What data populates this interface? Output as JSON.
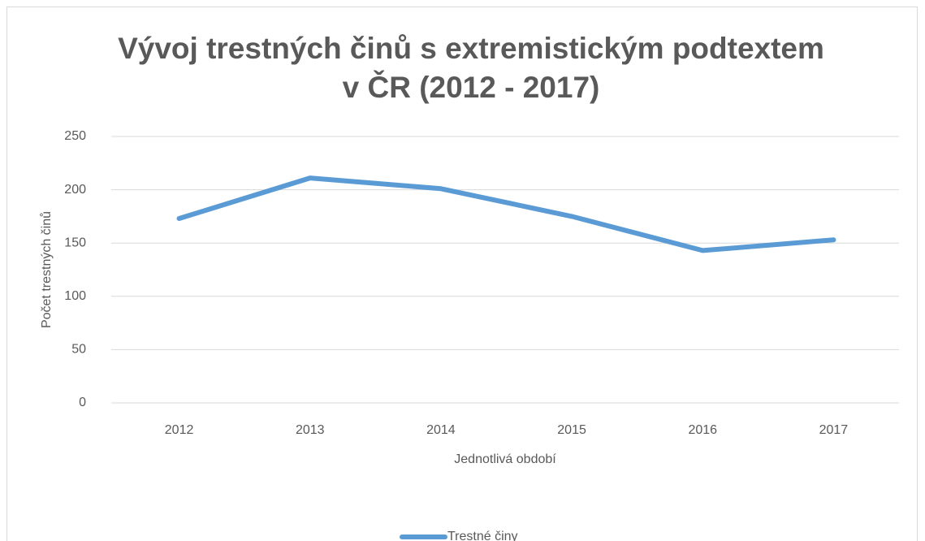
{
  "chart_data": {
    "type": "line",
    "title": [
      "Vývoj trestných činů s extremistickým podtextem",
      "v ČR (2012 - 2017)"
    ],
    "x_label": "Jednotlivá období",
    "y_label": "Počet trestných činů",
    "categories": [
      "2012",
      "2013",
      "2014",
      "2015",
      "2016",
      "2017"
    ],
    "series": [
      {
        "name": "Trestné činy",
        "color": "#5b9bd5",
        "values": [
          173,
          211,
          201,
          175,
          143,
          153
        ]
      }
    ],
    "ylim": [
      0,
      250
    ],
    "yticks": [
      0,
      50,
      100,
      150,
      200,
      250
    ],
    "grid": true,
    "legend": "bottom"
  }
}
